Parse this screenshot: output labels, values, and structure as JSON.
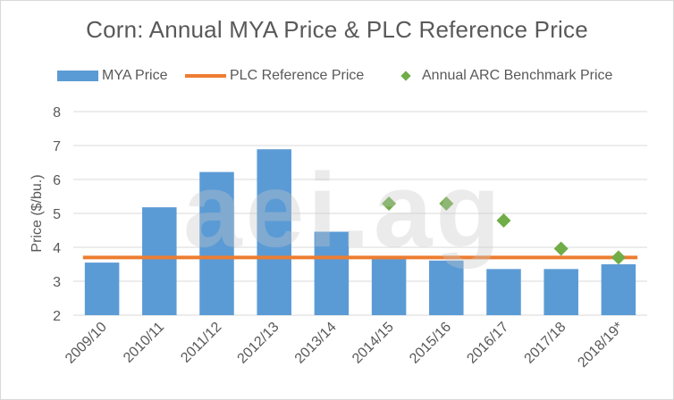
{
  "chart_data": {
    "type": "bar",
    "title": "Corn: Annual MYA Price & PLC Reference Price",
    "ylabel": "Price ($/bu.)",
    "xlabel": "",
    "ylim": [
      2,
      8
    ],
    "yticks": [
      2,
      3,
      4,
      5,
      6,
      7,
      8
    ],
    "grid": true,
    "legend_position": "top",
    "categories": [
      "2009/10",
      "2010/11",
      "2011/12",
      "2012/13",
      "2013/14",
      "2014/15",
      "2015/16",
      "2016/17",
      "2017/18",
      "2018/19*"
    ],
    "series": [
      {
        "name": "MYA Price",
        "type": "bar",
        "color": "#5b9bd5",
        "values": [
          3.55,
          5.18,
          6.22,
          6.89,
          4.46,
          3.7,
          3.61,
          3.36,
          3.36,
          3.5
        ]
      },
      {
        "name": "PLC Reference Price",
        "type": "line",
        "color": "#ed7d31",
        "values": [
          3.7,
          3.7,
          3.7,
          3.7,
          3.7,
          3.7,
          3.7,
          3.7,
          3.7,
          3.7
        ]
      },
      {
        "name": "Annual ARC Benchmark Price",
        "type": "scatter",
        "marker": "diamond",
        "color": "#70ad47",
        "values": [
          null,
          null,
          null,
          null,
          null,
          5.29,
          5.29,
          4.79,
          3.96,
          3.7
        ]
      }
    ],
    "watermark": "aei.ag"
  }
}
